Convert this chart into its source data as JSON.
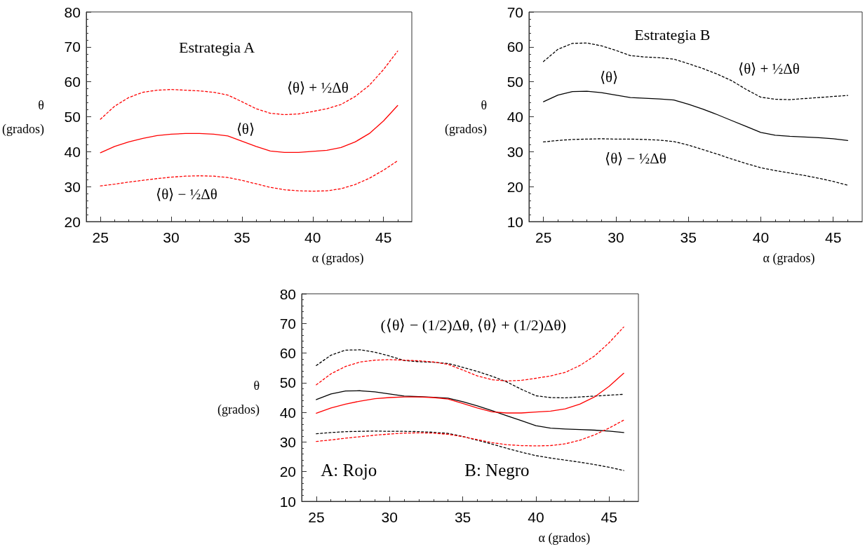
{
  "chart_data": [
    {
      "type": "line",
      "title": "Estrategia A",
      "xlabel": "α (grados)",
      "ylabel": "θ\n(grados)",
      "x": [
        25,
        26,
        27,
        28,
        29,
        30,
        31,
        32,
        33,
        34,
        35,
        36,
        37,
        38,
        39,
        40,
        41,
        42,
        43,
        44,
        45,
        46
      ],
      "series": [
        {
          "color": "#ff0000",
          "line_style": "solid",
          "values": [
            39.7,
            41.5,
            42.8,
            43.8,
            44.6,
            45.0,
            45.2,
            45.2,
            45.0,
            44.5,
            43.0,
            41.5,
            40.2,
            39.8,
            39.8,
            40.1,
            40.4,
            41.2,
            42.8,
            45.2,
            48.8,
            53.2
          ]
        },
        {
          "color": "#ff0000",
          "line_style": "dashed",
          "values": [
            49.3,
            53.0,
            55.5,
            57.0,
            57.6,
            57.8,
            57.6,
            57.4,
            57.0,
            56.2,
            54.3,
            52.3,
            51.0,
            50.6,
            50.8,
            51.5,
            52.3,
            53.5,
            55.8,
            59.0,
            63.5,
            68.8
          ]
        },
        {
          "color": "#ff0000",
          "line_style": "dashed",
          "values": [
            30.2,
            30.7,
            31.3,
            31.8,
            32.3,
            32.7,
            33.0,
            33.1,
            33.0,
            32.6,
            31.8,
            30.8,
            29.8,
            29.1,
            28.8,
            28.7,
            28.8,
            29.4,
            30.6,
            32.4,
            34.7,
            37.4
          ]
        }
      ],
      "annotations": [
        "⟨θ⟩ + ½Δθ",
        "⟨θ⟩",
        "⟨θ⟩ − ½Δθ"
      ],
      "xlim": [
        24,
        47
      ],
      "xticks": [
        25,
        30,
        35,
        40,
        45
      ],
      "ylim": [
        20,
        80
      ],
      "yticks": [
        20,
        30,
        40,
        50,
        60,
        70,
        80
      ],
      "grid": false
    },
    {
      "type": "line",
      "title": "Estrategia B",
      "xlabel": "α (grados)",
      "ylabel": "θ\n(grados)",
      "x": [
        25,
        26,
        27,
        28,
        29,
        30,
        31,
        32,
        33,
        34,
        35,
        36,
        37,
        38,
        39,
        40,
        41,
        42,
        43,
        44,
        45,
        46
      ],
      "series": [
        {
          "color": "#000000",
          "line_style": "solid",
          "values": [
            44.3,
            46.2,
            47.2,
            47.3,
            46.9,
            46.2,
            45.5,
            45.3,
            45.1,
            44.8,
            43.6,
            42.2,
            40.6,
            38.9,
            37.2,
            35.5,
            34.7,
            34.4,
            34.2,
            34.0,
            33.7,
            33.2
          ]
        },
        {
          "color": "#000000",
          "line_style": "dashed",
          "values": [
            55.8,
            59.3,
            61.0,
            61.1,
            60.3,
            59.0,
            57.5,
            57.1,
            56.9,
            56.5,
            55.2,
            53.8,
            52.2,
            50.3,
            47.8,
            45.6,
            45.0,
            44.9,
            45.2,
            45.5,
            45.8,
            46.1
          ]
        },
        {
          "color": "#000000",
          "line_style": "dashed",
          "values": [
            32.8,
            33.2,
            33.5,
            33.6,
            33.7,
            33.6,
            33.6,
            33.5,
            33.3,
            32.9,
            31.9,
            30.6,
            29.3,
            27.9,
            26.6,
            25.4,
            24.6,
            23.9,
            23.2,
            22.4,
            21.5,
            20.4
          ]
        }
      ],
      "annotations": [
        "⟨θ⟩",
        "⟨θ⟩ + ½Δθ",
        "⟨θ⟩ − ½Δθ"
      ],
      "xlim": [
        24,
        47
      ],
      "xticks": [
        25,
        30,
        35,
        40,
        45
      ],
      "ylim": [
        10,
        70
      ],
      "yticks": [
        10,
        20,
        30,
        40,
        50,
        60,
        70
      ],
      "grid": false
    },
    {
      "type": "line",
      "title": "(⟨θ⟩ − (1/2)Δθ, ⟨θ⟩ + (1/2)Δθ)",
      "xlabel": "α (grados)",
      "ylabel": "θ\n(grados)",
      "x": [
        25,
        26,
        27,
        28,
        29,
        30,
        31,
        32,
        33,
        34,
        35,
        36,
        37,
        38,
        39,
        40,
        41,
        42,
        43,
        44,
        45,
        46
      ],
      "series": [
        {
          "color": "#000000",
          "line_style": "solid",
          "values": [
            44.3,
            46.2,
            47.2,
            47.3,
            46.9,
            46.2,
            45.5,
            45.3,
            45.1,
            44.8,
            43.6,
            42.2,
            40.6,
            38.9,
            37.2,
            35.5,
            34.7,
            34.4,
            34.2,
            34.0,
            33.7,
            33.2
          ]
        },
        {
          "color": "#000000",
          "line_style": "dashed",
          "values": [
            55.8,
            59.3,
            61.0,
            61.1,
            60.3,
            59.0,
            57.5,
            57.1,
            56.9,
            56.5,
            55.2,
            53.8,
            52.2,
            50.3,
            47.8,
            45.6,
            45.0,
            44.9,
            45.2,
            45.5,
            45.8,
            46.1
          ]
        },
        {
          "color": "#000000",
          "line_style": "dashed",
          "values": [
            32.8,
            33.2,
            33.5,
            33.6,
            33.7,
            33.6,
            33.6,
            33.5,
            33.3,
            32.9,
            31.9,
            30.6,
            29.3,
            27.9,
            26.6,
            25.4,
            24.6,
            23.9,
            23.2,
            22.4,
            21.5,
            20.4
          ]
        },
        {
          "color": "#ff0000",
          "line_style": "solid",
          "values": [
            39.7,
            41.5,
            42.8,
            43.8,
            44.6,
            45.0,
            45.2,
            45.2,
            45.0,
            44.5,
            43.0,
            41.5,
            40.2,
            39.8,
            39.8,
            40.1,
            40.4,
            41.2,
            42.8,
            45.2,
            48.8,
            53.2
          ]
        },
        {
          "color": "#ff0000",
          "line_style": "dashed",
          "values": [
            49.3,
            53.0,
            55.5,
            57.0,
            57.6,
            57.8,
            57.6,
            57.4,
            57.0,
            56.2,
            54.3,
            52.3,
            51.0,
            50.6,
            50.8,
            51.5,
            52.3,
            53.5,
            55.8,
            59.0,
            63.5,
            68.8
          ]
        },
        {
          "color": "#ff0000",
          "line_style": "dashed",
          "values": [
            30.2,
            30.7,
            31.3,
            31.8,
            32.3,
            32.7,
            33.0,
            33.1,
            33.0,
            32.6,
            31.8,
            30.8,
            29.8,
            29.1,
            28.8,
            28.7,
            28.8,
            29.4,
            30.6,
            32.4,
            34.7,
            37.4
          ]
        }
      ],
      "annotations": [
        "A: Rojo",
        "B: Negro"
      ],
      "xlim": [
        24,
        47
      ],
      "xticks": [
        25,
        30,
        35,
        40,
        45
      ],
      "ylim": [
        10,
        80
      ],
      "yticks": [
        10,
        20,
        30,
        40,
        50,
        60,
        70,
        80
      ],
      "grid": false
    }
  ]
}
